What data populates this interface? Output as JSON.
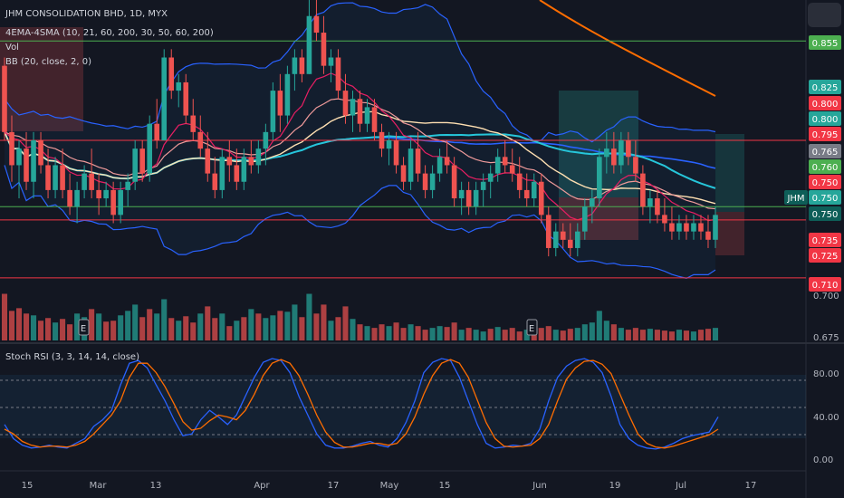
{
  "chart": {
    "title": "JHM CONSOLIDATION BHD, 1D, MYX",
    "ema_sma_legend": "4EMA-4SMA (10, 21, 60, 200, 30, 50, 60, 200)",
    "vol_legend": "Vol",
    "bb_legend": "BB (20, close, 2, 0)",
    "stoch_legend": "Stoch RSI (3, 3, 14, 14, close)",
    "ticker_tag": "JHM",
    "earnings_marker": "E"
  },
  "colors": {
    "background": "#131722",
    "up": "#26a69a",
    "down": "#ef5350",
    "ema10": "#e91e63",
    "ema21": "#ef9a9a",
    "sma30": "#ffe0b2",
    "sma50": "#26c6da",
    "sma60": "#2962ff",
    "sma200": "#ff6d00",
    "bb": "#2962ff",
    "stoch_k": "#2962ff",
    "stoch_d": "#ff6d00",
    "hline_red": "#f23645",
    "hline_green": "#4caf50"
  },
  "chart_data": {
    "type": "candlestick",
    "x_ticks": [
      "15",
      "Mar",
      "13",
      "Apr",
      "17",
      "May",
      "15",
      "Jun",
      "19",
      "Jul",
      "17"
    ],
    "y_ticks": [
      "0.700",
      "0.675"
    ],
    "price_labels": [
      {
        "text": "0.855",
        "kind": "green"
      },
      {
        "text": "0.825",
        "kind": "teal"
      },
      {
        "text": "0.800",
        "kind": "red"
      },
      {
        "text": "0.800",
        "kind": "teal"
      },
      {
        "text": "0.795",
        "kind": "red"
      },
      {
        "text": "0.765",
        "kind": "gray"
      },
      {
        "text": "0.760",
        "kind": "greenfill"
      },
      {
        "text": "0.750",
        "kind": "red"
      },
      {
        "text": "0.750",
        "kind": "teal"
      },
      {
        "text": "0.750",
        "kind": "darkteal"
      },
      {
        "text": "0.735",
        "kind": "red"
      },
      {
        "text": "0.725",
        "kind": "red"
      },
      {
        "text": "0.710",
        "kind": "red"
      }
    ],
    "horizontal_levels": [
      {
        "price": 0.855,
        "color": "green"
      },
      {
        "price": 0.795,
        "color": "red"
      },
      {
        "price": 0.755,
        "color": "green"
      },
      {
        "price": 0.747,
        "color": "red"
      },
      {
        "price": 0.712,
        "color": "red"
      }
    ],
    "candles_ohlc": [
      [
        0.84,
        0.845,
        0.795,
        0.8
      ],
      [
        0.8,
        0.81,
        0.77,
        0.78
      ],
      [
        0.78,
        0.795,
        0.76,
        0.79
      ],
      [
        0.79,
        0.8,
        0.765,
        0.77
      ],
      [
        0.77,
        0.8,
        0.76,
        0.795
      ],
      [
        0.795,
        0.8,
        0.775,
        0.78
      ],
      [
        0.78,
        0.79,
        0.76,
        0.765
      ],
      [
        0.765,
        0.785,
        0.76,
        0.78
      ],
      [
        0.78,
        0.79,
        0.76,
        0.765
      ],
      [
        0.765,
        0.775,
        0.75,
        0.755
      ],
      [
        0.755,
        0.77,
        0.745,
        0.765
      ],
      [
        0.765,
        0.78,
        0.76,
        0.775
      ],
      [
        0.775,
        0.79,
        0.76,
        0.765
      ],
      [
        0.765,
        0.775,
        0.75,
        0.76
      ],
      [
        0.76,
        0.77,
        0.755,
        0.765
      ],
      [
        0.765,
        0.77,
        0.745,
        0.75
      ],
      [
        0.75,
        0.77,
        0.745,
        0.765
      ],
      [
        0.765,
        0.775,
        0.755,
        0.77
      ],
      [
        0.77,
        0.795,
        0.765,
        0.79
      ],
      [
        0.79,
        0.795,
        0.77,
        0.775
      ],
      [
        0.775,
        0.81,
        0.77,
        0.805
      ],
      [
        0.805,
        0.82,
        0.79,
        0.795
      ],
      [
        0.795,
        0.85,
        0.795,
        0.845
      ],
      [
        0.845,
        0.85,
        0.82,
        0.825
      ],
      [
        0.825,
        0.835,
        0.815,
        0.83
      ],
      [
        0.83,
        0.835,
        0.805,
        0.81
      ],
      [
        0.81,
        0.82,
        0.795,
        0.8
      ],
      [
        0.8,
        0.81,
        0.785,
        0.79
      ],
      [
        0.79,
        0.8,
        0.77,
        0.775
      ],
      [
        0.775,
        0.785,
        0.76,
        0.765
      ],
      [
        0.765,
        0.79,
        0.76,
        0.785
      ],
      [
        0.785,
        0.795,
        0.77,
        0.78
      ],
      [
        0.78,
        0.79,
        0.765,
        0.77
      ],
      [
        0.77,
        0.79,
        0.765,
        0.785
      ],
      [
        0.785,
        0.795,
        0.775,
        0.78
      ],
      [
        0.78,
        0.795,
        0.775,
        0.79
      ],
      [
        0.79,
        0.805,
        0.78,
        0.8
      ],
      [
        0.8,
        0.83,
        0.795,
        0.825
      ],
      [
        0.825,
        0.835,
        0.8,
        0.81
      ],
      [
        0.81,
        0.84,
        0.805,
        0.835
      ],
      [
        0.835,
        0.85,
        0.825,
        0.845
      ],
      [
        0.845,
        0.85,
        0.83,
        0.835
      ],
      [
        0.835,
        0.88,
        0.835,
        0.87
      ],
      [
        0.87,
        0.88,
        0.855,
        0.86
      ],
      [
        0.86,
        0.87,
        0.835,
        0.84
      ],
      [
        0.84,
        0.85,
        0.83,
        0.845
      ],
      [
        0.845,
        0.85,
        0.82,
        0.825
      ],
      [
        0.825,
        0.835,
        0.805,
        0.81
      ],
      [
        0.81,
        0.825,
        0.8,
        0.82
      ],
      [
        0.82,
        0.825,
        0.8,
        0.805
      ],
      [
        0.805,
        0.82,
        0.8,
        0.815
      ],
      [
        0.815,
        0.82,
        0.795,
        0.8
      ],
      [
        0.8,
        0.805,
        0.785,
        0.79
      ],
      [
        0.79,
        0.8,
        0.78,
        0.795
      ],
      [
        0.795,
        0.8,
        0.775,
        0.78
      ],
      [
        0.78,
        0.785,
        0.765,
        0.77
      ],
      [
        0.77,
        0.795,
        0.765,
        0.79
      ],
      [
        0.79,
        0.8,
        0.77,
        0.775
      ],
      [
        0.775,
        0.78,
        0.76,
        0.765
      ],
      [
        0.765,
        0.78,
        0.76,
        0.775
      ],
      [
        0.775,
        0.79,
        0.77,
        0.785
      ],
      [
        0.785,
        0.795,
        0.775,
        0.78
      ],
      [
        0.78,
        0.785,
        0.755,
        0.76
      ],
      [
        0.76,
        0.77,
        0.75,
        0.765
      ],
      [
        0.765,
        0.77,
        0.75,
        0.755
      ],
      [
        0.755,
        0.77,
        0.75,
        0.765
      ],
      [
        0.765,
        0.775,
        0.755,
        0.77
      ],
      [
        0.77,
        0.78,
        0.76,
        0.775
      ],
      [
        0.775,
        0.79,
        0.77,
        0.785
      ],
      [
        0.785,
        0.795,
        0.775,
        0.78
      ],
      [
        0.78,
        0.79,
        0.77,
        0.775
      ],
      [
        0.775,
        0.785,
        0.76,
        0.765
      ],
      [
        0.765,
        0.775,
        0.755,
        0.76
      ],
      [
        0.76,
        0.775,
        0.755,
        0.77
      ],
      [
        0.77,
        0.775,
        0.745,
        0.75
      ],
      [
        0.75,
        0.755,
        0.725,
        0.73
      ],
      [
        0.73,
        0.745,
        0.725,
        0.74
      ],
      [
        0.74,
        0.745,
        0.73,
        0.735
      ],
      [
        0.735,
        0.745,
        0.725,
        0.73
      ],
      [
        0.73,
        0.745,
        0.725,
        0.74
      ],
      [
        0.74,
        0.76,
        0.735,
        0.755
      ],
      [
        0.755,
        0.765,
        0.745,
        0.76
      ],
      [
        0.76,
        0.79,
        0.755,
        0.785
      ],
      [
        0.785,
        0.8,
        0.775,
        0.79
      ],
      [
        0.79,
        0.8,
        0.775,
        0.78
      ],
      [
        0.78,
        0.8,
        0.775,
        0.795
      ],
      [
        0.795,
        0.8,
        0.78,
        0.785
      ],
      [
        0.785,
        0.795,
        0.77,
        0.775
      ],
      [
        0.775,
        0.78,
        0.75,
        0.755
      ],
      [
        0.755,
        0.765,
        0.745,
        0.76
      ],
      [
        0.76,
        0.765,
        0.745,
        0.75
      ],
      [
        0.75,
        0.76,
        0.74,
        0.745
      ],
      [
        0.745,
        0.755,
        0.735,
        0.74
      ],
      [
        0.74,
        0.75,
        0.735,
        0.745
      ],
      [
        0.745,
        0.75,
        0.735,
        0.74
      ],
      [
        0.74,
        0.75,
        0.735,
        0.745
      ],
      [
        0.745,
        0.75,
        0.735,
        0.74
      ],
      [
        0.74,
        0.75,
        0.73,
        0.735
      ],
      [
        0.735,
        0.755,
        0.73,
        0.75
      ]
    ],
    "volume": [
      [
        0.52,
        0
      ],
      [
        0.33,
        0
      ],
      [
        0.36,
        0
      ],
      [
        0.3,
        0
      ],
      [
        0.28,
        1
      ],
      [
        0.22,
        0
      ],
      [
        0.25,
        0
      ],
      [
        0.2,
        1
      ],
      [
        0.24,
        0
      ],
      [
        0.18,
        0
      ],
      [
        0.3,
        1
      ],
      [
        0.26,
        1
      ],
      [
        0.35,
        0
      ],
      [
        0.3,
        1
      ],
      [
        0.21,
        0
      ],
      [
        0.22,
        0
      ],
      [
        0.28,
        1
      ],
      [
        0.33,
        1
      ],
      [
        0.4,
        1
      ],
      [
        0.26,
        0
      ],
      [
        0.35,
        0
      ],
      [
        0.3,
        1
      ],
      [
        0.46,
        1
      ],
      [
        0.25,
        0
      ],
      [
        0.22,
        1
      ],
      [
        0.27,
        0
      ],
      [
        0.2,
        0
      ],
      [
        0.3,
        1
      ],
      [
        0.38,
        0
      ],
      [
        0.25,
        0
      ],
      [
        0.3,
        1
      ],
      [
        0.16,
        0
      ],
      [
        0.22,
        1
      ],
      [
        0.26,
        0
      ],
      [
        0.35,
        1
      ],
      [
        0.3,
        0
      ],
      [
        0.25,
        1
      ],
      [
        0.28,
        1
      ],
      [
        0.33,
        0
      ],
      [
        0.32,
        1
      ],
      [
        0.4,
        1
      ],
      [
        0.26,
        0
      ],
      [
        0.52,
        1
      ],
      [
        0.3,
        0
      ],
      [
        0.4,
        0
      ],
      [
        0.22,
        1
      ],
      [
        0.26,
        0
      ],
      [
        0.38,
        0
      ],
      [
        0.24,
        1
      ],
      [
        0.18,
        0
      ],
      [
        0.16,
        1
      ],
      [
        0.14,
        0
      ],
      [
        0.18,
        0
      ],
      [
        0.16,
        1
      ],
      [
        0.2,
        0
      ],
      [
        0.14,
        0
      ],
      [
        0.18,
        1
      ],
      [
        0.16,
        0
      ],
      [
        0.12,
        0
      ],
      [
        0.14,
        1
      ],
      [
        0.16,
        1
      ],
      [
        0.15,
        0
      ],
      [
        0.2,
        0
      ],
      [
        0.12,
        1
      ],
      [
        0.14,
        0
      ],
      [
        0.12,
        1
      ],
      [
        0.1,
        1
      ],
      [
        0.13,
        0
      ],
      [
        0.15,
        1
      ],
      [
        0.12,
        0
      ],
      [
        0.14,
        0
      ],
      [
        0.1,
        0
      ],
      [
        0.12,
        1
      ],
      [
        0.09,
        0
      ],
      [
        0.14,
        0
      ],
      [
        0.16,
        0
      ],
      [
        0.12,
        1
      ],
      [
        0.11,
        0
      ],
      [
        0.13,
        0
      ],
      [
        0.14,
        1
      ],
      [
        0.18,
        1
      ],
      [
        0.2,
        1
      ],
      [
        0.33,
        1
      ],
      [
        0.22,
        1
      ],
      [
        0.18,
        0
      ],
      [
        0.14,
        1
      ],
      [
        0.12,
        0
      ],
      [
        0.14,
        0
      ],
      [
        0.12,
        0
      ],
      [
        0.13,
        1
      ],
      [
        0.12,
        0
      ],
      [
        0.11,
        0
      ],
      [
        0.1,
        0
      ],
      [
        0.12,
        1
      ],
      [
        0.11,
        0
      ],
      [
        0.1,
        1
      ],
      [
        0.12,
        0
      ],
      [
        0.13,
        0
      ],
      [
        0.14,
        1
      ]
    ],
    "stoch_k": [
      30,
      15,
      8,
      5,
      6,
      8,
      6,
      5,
      10,
      15,
      28,
      35,
      45,
      72,
      95,
      98,
      90,
      72,
      55,
      35,
      18,
      20,
      35,
      45,
      38,
      30,
      40,
      60,
      80,
      96,
      100,
      98,
      85,
      60,
      40,
      20,
      8,
      5,
      5,
      7,
      10,
      12,
      8,
      6,
      15,
      32,
      55,
      85,
      96,
      100,
      98,
      80,
      55,
      30,
      10,
      5,
      6,
      8,
      7,
      10,
      25,
      55,
      80,
      92,
      98,
      100,
      96,
      85,
      60,
      30,
      15,
      8,
      5,
      4,
      6,
      10,
      15,
      18,
      20,
      22,
      38
    ],
    "stoch_d": [
      25,
      20,
      12,
      8,
      6,
      7,
      7,
      6,
      8,
      12,
      20,
      30,
      40,
      55,
      80,
      95,
      95,
      85,
      70,
      52,
      33,
      24,
      26,
      34,
      40,
      38,
      35,
      45,
      62,
      82,
      95,
      99,
      95,
      82,
      62,
      40,
      22,
      11,
      6,
      6,
      8,
      10,
      10,
      8,
      10,
      20,
      38,
      62,
      82,
      95,
      99,
      95,
      80,
      56,
      32,
      15,
      7,
      6,
      7,
      8,
      15,
      30,
      55,
      78,
      90,
      97,
      98,
      94,
      84,
      62,
      40,
      20,
      10,
      6,
      5,
      7,
      10,
      13,
      16,
      19,
      25
    ]
  }
}
